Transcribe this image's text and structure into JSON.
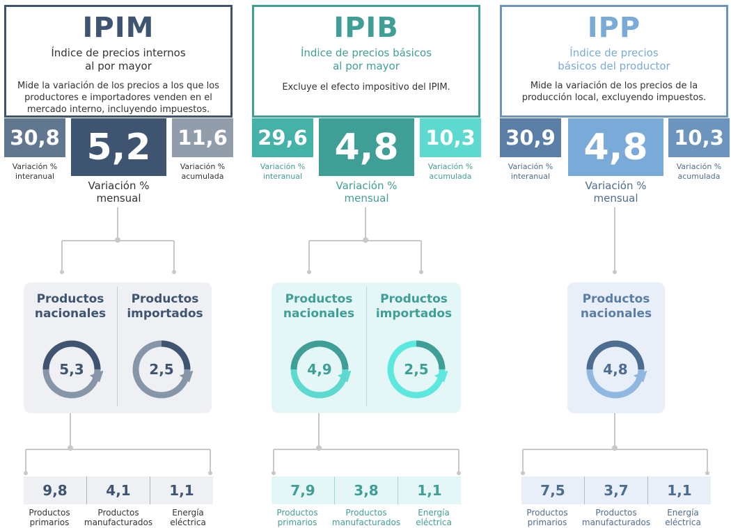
{
  "colors": {
    "ipim_dark": "#3e5470",
    "ipim_mid": "#61768f",
    "ipim_light": "#929dab",
    "ipim_panel": "#eff0f3",
    "ipib_dark": "#3f9e96",
    "ipib_mid": "#45b2a8",
    "ipib_light": "#5dd9cf",
    "ipib_panel": "#e4f7f6",
    "ipp_dark": "#5a7ea5",
    "ipp_mid": "#7aaad8",
    "ipp_panel": "#e8eff8",
    "connector": "#c8c8c8"
  },
  "ipim": {
    "acronym": "IPIM",
    "name_line1": "Índice de precios internos",
    "name_line2": "al por mayor",
    "desc_line1": "Mide la variación de los precios a los que los",
    "desc_line2": "productores e importadores venden en el",
    "desc_line3": "mercado interno, incluyendo impuestos.",
    "interanual": "30,8",
    "interanual_cap1": "Variación %",
    "interanual_cap2": "interanual",
    "mensual": "5,2",
    "mensual_cap1": "Variación %",
    "mensual_cap2": "mensual",
    "acumulada": "11,6",
    "acumulada_cap1": "Variación %",
    "acumulada_cap2": "acumulada",
    "nac_title1": "Productos",
    "nac_title2": "nacionales",
    "nac_value": "5,3",
    "imp_title1": "Productos",
    "imp_title2": "importados",
    "imp_value": "2,5",
    "sub1_value": "9,8",
    "sub1_cap1": "Productos",
    "sub1_cap2": "primarios",
    "sub2_value": "4,1",
    "sub2_cap1": "Productos",
    "sub2_cap2": "manufacturados",
    "sub3_value": "1,1",
    "sub3_cap1": "Energía",
    "sub3_cap2": "eléctrica"
  },
  "ipib": {
    "acronym": "IPIB",
    "name_line1": "Índice de precios básicos",
    "name_line2": "al por mayor",
    "desc_line1": "Excluye el efecto impositivo del IPIM.",
    "interanual": "29,6",
    "interanual_cap1": "Variación %",
    "interanual_cap2": "interanual",
    "mensual": "4,8",
    "mensual_cap1": "Variación %",
    "mensual_cap2": "mensual",
    "acumulada": "10,3",
    "acumulada_cap1": "Variación %",
    "acumulada_cap2": "acumulada",
    "nac_title1": "Productos",
    "nac_title2": "nacionales",
    "nac_value": "4,9",
    "imp_title1": "Productos",
    "imp_title2": "importados",
    "imp_value": "2,5",
    "sub1_value": "7,9",
    "sub1_cap1": "Productos",
    "sub1_cap2": "primarios",
    "sub2_value": "3,8",
    "sub2_cap1": "Productos",
    "sub2_cap2": "manufacturados",
    "sub3_value": "1,1",
    "sub3_cap1": "Energía",
    "sub3_cap2": "eléctrica"
  },
  "ipp": {
    "acronym": "IPP",
    "name_line1": "Índice de precios",
    "name_line2": "básicos del productor",
    "desc_line1": "Mide la variación de los precios de la",
    "desc_line2": "producción local, excluyendo impuestos.",
    "interanual": "30,9",
    "interanual_cap1": "Variación %",
    "interanual_cap2": "interanual",
    "mensual": "4,8",
    "mensual_cap1": "Variación %",
    "mensual_cap2": "mensual",
    "acumulada": "10,3",
    "acumulada_cap1": "Variación %",
    "acumulada_cap2": "acumulada",
    "nac_title1": "Productos",
    "nac_title2": "nacionales",
    "nac_value": "4,8",
    "sub1_value": "7,5",
    "sub1_cap1": "Productos",
    "sub1_cap2": "primarios",
    "sub2_value": "3,7",
    "sub2_cap1": "Productos",
    "sub2_cap2": "manufacturados",
    "sub3_value": "1,1",
    "sub3_cap1": "Energía",
    "sub3_cap2": "eléctrica"
  }
}
